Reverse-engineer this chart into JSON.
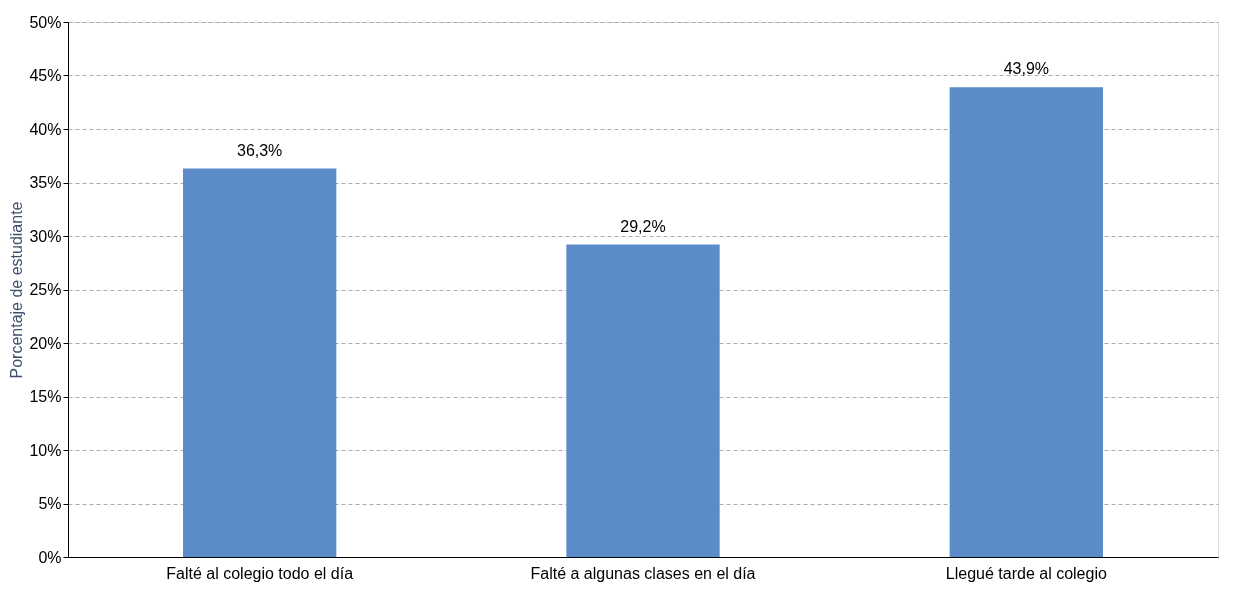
{
  "chart_data": {
    "type": "bar",
    "ylabel": "Porcentaje de estudiante",
    "categories": [
      "Falté al colegio todo el día",
      "Falté a algunas clases en el día",
      "Llegué tarde al colegio"
    ],
    "values": [
      36.3,
      29.2,
      43.9
    ],
    "color": "#5b8bc9",
    "value_labels": [
      "36,3%",
      "29,2%",
      "43,9%"
    ],
    "ylim": [
      0,
      50
    ],
    "yticks": [
      {
        "value": 0,
        "label": "0%"
      },
      {
        "value": 5,
        "label": "5%"
      },
      {
        "value": 10,
        "label": "10%"
      },
      {
        "value": 15,
        "label": "15%"
      },
      {
        "value": 20,
        "label": "20%"
      },
      {
        "value": 25,
        "label": "25%"
      },
      {
        "value": 30,
        "label": "30%"
      },
      {
        "value": 35,
        "label": "35%"
      },
      {
        "value": 40,
        "label": "40%"
      },
      {
        "value": 45,
        "label": "45%"
      },
      {
        "value": 50,
        "label": "50%"
      }
    ],
    "grid": "y"
  }
}
